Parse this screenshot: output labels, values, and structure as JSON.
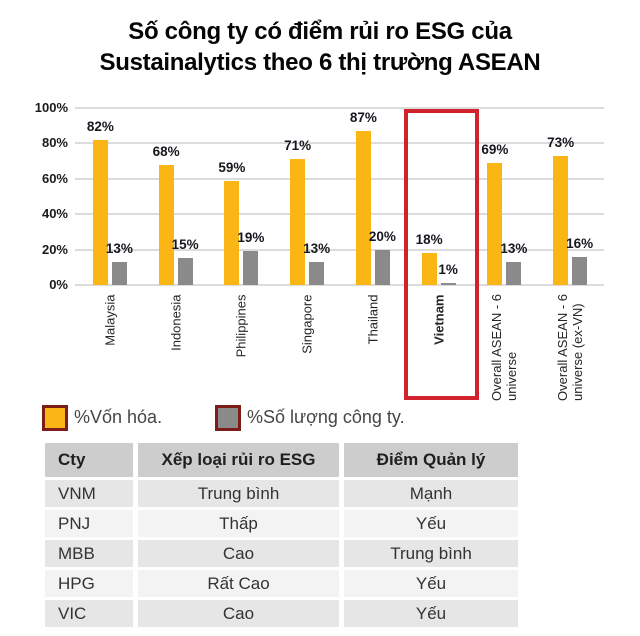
{
  "title": {
    "line1": "Số công ty có điểm rủi ro ESG của",
    "line2": "Sustainalytics theo 6 thị trường ASEAN"
  },
  "chart_data": {
    "type": "bar",
    "title": "Số công ty có điểm rủi ro ESG của Sustainalytics theo 6 thị trường ASEAN",
    "categories": [
      "Malaysia",
      "Indonesia",
      "Philippines",
      "Singapore",
      "Thailand",
      "Vietnam",
      "Overall ASEAN - 6 universe",
      "Overall ASEAN - 6 universe (ex-VN)"
    ],
    "x_labels_display": [
      "Malaysia",
      "Indonesia",
      "Philippines",
      "Singapore",
      "Thailand",
      "Vietnam",
      "Overall ASEAN - 6\nuniverse",
      "Overall ASEAN - 6\nuniverse (ex-VN)"
    ],
    "series": [
      {
        "name": "%Vốn hóa.",
        "color": "#FBB615",
        "values": [
          82,
          68,
          59,
          71,
          87,
          18,
          69,
          73
        ]
      },
      {
        "name": "%Số lượng công ty.",
        "color": "#8A8A8A",
        "values": [
          13,
          15,
          19,
          13,
          20,
          1,
          13,
          16
        ]
      }
    ],
    "unit": "%",
    "ylim": [
      0,
      100
    ],
    "y_ticks": [
      "0%",
      "20%",
      "40%",
      "60%",
      "80%",
      "100%"
    ],
    "grid": true,
    "legend_position": "bottom",
    "highlight_category": "Vietnam",
    "highlight_color": "#D2222B",
    "swatch_border_color": "#7B1D19"
  },
  "table": {
    "headers": [
      "Cty",
      "Xếp loại rủi ro ESG",
      "Điểm Quản lý"
    ],
    "rows": [
      [
        "VNM",
        "Trung bình",
        "Mạnh"
      ],
      [
        "PNJ",
        "Thấp",
        "Yếu"
      ],
      [
        "MBB",
        "Cao",
        "Trung bình"
      ],
      [
        "HPG",
        "Rất Cao",
        "Yếu"
      ],
      [
        "VIC",
        "Cao",
        "Yếu"
      ]
    ]
  }
}
